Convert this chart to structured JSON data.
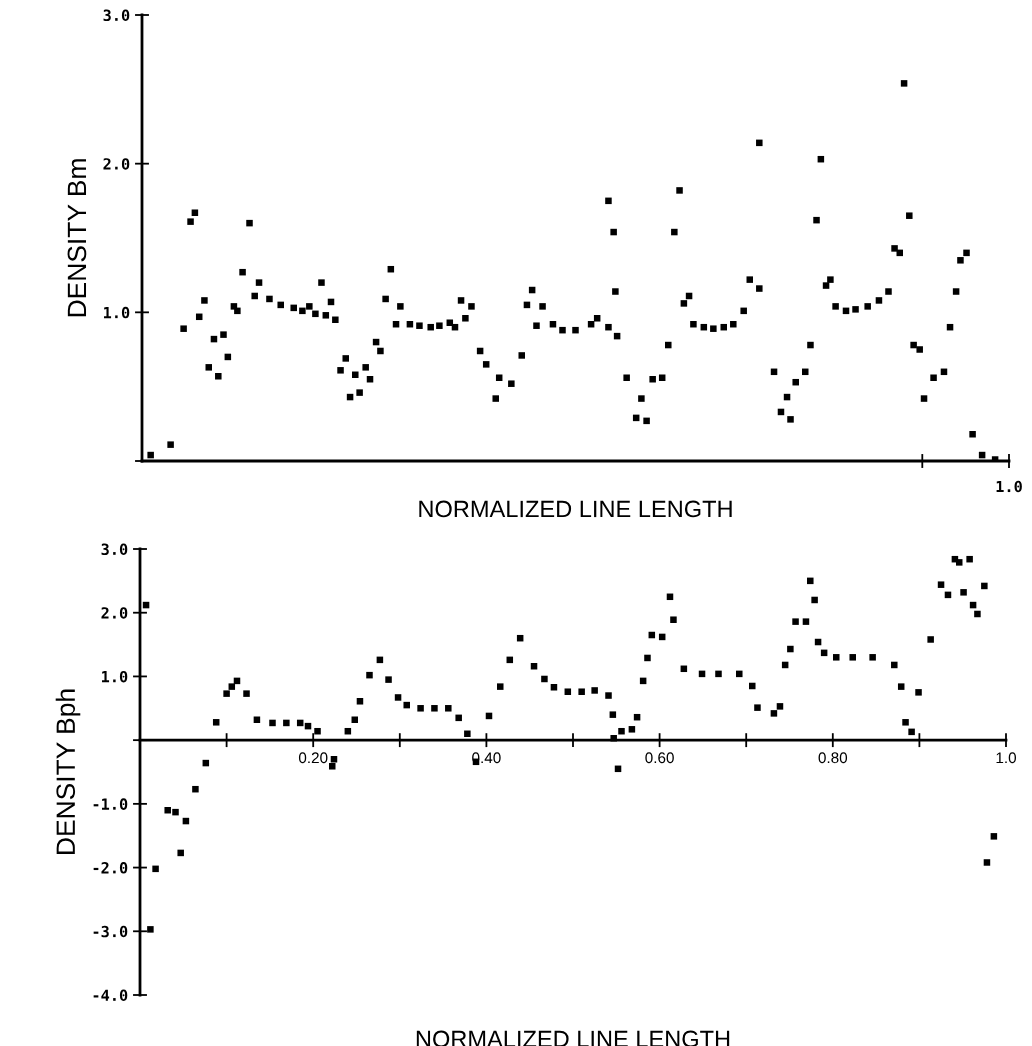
{
  "chart_data": [
    {
      "type": "scatter",
      "ylabel": "DENSITY Bm",
      "xlabel": "NORMALIZED LINE LENGTH",
      "xlim": [
        0,
        1.0
      ],
      "ylim": [
        0,
        3.0
      ],
      "xticks": [
        {
          "value": 0.9,
          "label": null
        },
        {
          "value": 1.0,
          "label": null
        }
      ],
      "tick_labels": "y",
      "annotations": [
        "1.0"
      ],
      "yticks": [
        {
          "value": 0,
          "label": null
        },
        {
          "value": 1.0,
          "label": "1.0"
        },
        {
          "value": 2.0,
          "label": "2.0"
        },
        {
          "value": 3.0,
          "label": "3.0"
        }
      ],
      "grid": false,
      "legend": false,
      "marker": "square",
      "x": [
        0.01,
        0.033,
        0.048,
        0.056,
        0.061,
        0.066,
        0.072,
        0.077,
        0.083,
        0.088,
        0.094,
        0.099,
        0.106,
        0.11,
        0.116,
        0.124,
        0.13,
        0.135,
        0.147,
        0.16,
        0.175,
        0.185,
        0.193,
        0.2,
        0.207,
        0.212,
        0.218,
        0.223,
        0.229,
        0.235,
        0.24,
        0.246,
        0.251,
        0.258,
        0.263,
        0.27,
        0.275,
        0.281,
        0.287,
        0.293,
        0.298,
        0.309,
        0.32,
        0.333,
        0.343,
        0.355,
        0.361,
        0.368,
        0.373,
        0.38,
        0.39,
        0.397,
        0.408,
        0.412,
        0.426,
        0.438,
        0.444,
        0.45,
        0.455,
        0.462,
        0.474,
        0.485,
        0.5,
        0.518,
        0.525,
        0.538,
        0.538,
        0.544,
        0.546,
        0.548,
        0.559,
        0.57,
        0.576,
        0.582,
        0.589,
        0.6,
        0.607,
        0.614,
        0.62,
        0.625,
        0.631,
        0.636,
        0.648,
        0.659,
        0.671,
        0.682,
        0.694,
        0.701,
        0.712,
        0.712,
        0.729,
        0.737,
        0.744,
        0.748,
        0.754,
        0.765,
        0.771,
        0.778,
        0.783,
        0.789,
        0.794,
        0.8,
        0.812,
        0.823,
        0.837,
        0.85,
        0.861,
        0.868,
        0.874,
        0.879,
        0.885,
        0.89,
        0.897,
        0.902,
        0.913,
        0.925,
        0.932,
        0.939,
        0.944,
        0.951,
        0.958,
        0.969,
        0.984
      ],
      "series": [
        {
          "color": "#000000",
          "values": [
            0.04,
            0.11,
            0.89,
            1.61,
            1.67,
            0.97,
            1.08,
            0.63,
            0.82,
            0.57,
            0.85,
            0.7,
            1.04,
            1.01,
            1.27,
            1.6,
            1.11,
            1.2,
            1.09,
            1.05,
            1.03,
            1.01,
            1.04,
            0.99,
            1.2,
            0.98,
            1.07,
            0.95,
            0.61,
            0.69,
            0.43,
            0.58,
            0.46,
            0.63,
            0.55,
            0.8,
            0.74,
            1.09,
            1.29,
            0.92,
            1.04,
            0.92,
            0.91,
            0.9,
            0.91,
            0.93,
            0.9,
            1.08,
            0.96,
            1.04,
            0.74,
            0.65,
            0.42,
            0.56,
            0.52,
            0.71,
            1.05,
            1.15,
            0.91,
            1.04,
            0.92,
            0.88,
            0.88,
            0.92,
            0.96,
            0.9,
            1.75,
            1.54,
            1.14,
            0.84,
            0.56,
            0.29,
            0.42,
            0.27,
            0.55,
            0.56,
            0.78,
            1.54,
            1.82,
            1.06,
            1.11,
            0.92,
            0.9,
            0.89,
            0.9,
            0.92,
            1.01,
            1.22,
            1.16,
            2.14,
            0.6,
            0.33,
            0.43,
            0.28,
            0.53,
            0.6,
            0.78,
            1.62,
            2.03,
            1.18,
            1.22,
            1.04,
            1.01,
            1.02,
            1.04,
            1.08,
            1.14,
            1.43,
            1.4,
            2.54,
            1.65,
            0.78,
            0.75,
            0.42,
            0.56,
            0.6,
            0.9,
            1.14,
            1.35,
            1.4,
            0.18,
            0.04,
            0.01
          ]
        }
      ]
    },
    {
      "type": "scatter",
      "ylabel": "DENSITY Bph",
      "xlabel": "NORMALIZED LINE LENGTH",
      "xlim": [
        0,
        1.0
      ],
      "ylim": [
        -4.0,
        3.0
      ],
      "xticks": [
        {
          "value": 0.1,
          "label": null
        },
        {
          "value": 0.2,
          "label": "0.20"
        },
        {
          "value": 0.3,
          "label": null
        },
        {
          "value": 0.4,
          "label": "0.40"
        },
        {
          "value": 0.5,
          "label": null
        },
        {
          "value": 0.6,
          "label": "0.60"
        },
        {
          "value": 0.7,
          "label": null
        },
        {
          "value": 0.8,
          "label": "0.80"
        },
        {
          "value": 0.9,
          "label": null
        },
        {
          "value": 1.0,
          "label": "1.0"
        }
      ],
      "yticks": [
        {
          "value": -4.0,
          "label": "-4.0"
        },
        {
          "value": -3.0,
          "label": "-3.0"
        },
        {
          "value": -2.0,
          "label": "-2.0"
        },
        {
          "value": -1.0,
          "label": "-1.0"
        },
        {
          "value": 0,
          "label": null
        },
        {
          "value": 1.0,
          "label": "1.0"
        },
        {
          "value": 2.0,
          "label": "2.0"
        },
        {
          "value": 3.0,
          "label": "3.0"
        }
      ],
      "grid": false,
      "legend": false,
      "marker": "square",
      "x": [
        0.007,
        0.012,
        0.018,
        0.032,
        0.041,
        0.047,
        0.053,
        0.064,
        0.076,
        0.088,
        0.1,
        0.106,
        0.112,
        0.123,
        0.135,
        0.153,
        0.169,
        0.185,
        0.194,
        0.205,
        0.222,
        0.224,
        0.24,
        0.248,
        0.254,
        0.265,
        0.277,
        0.287,
        0.298,
        0.308,
        0.324,
        0.34,
        0.356,
        0.368,
        0.378,
        0.388,
        0.403,
        0.416,
        0.427,
        0.439,
        0.455,
        0.467,
        0.478,
        0.494,
        0.51,
        0.525,
        0.541,
        0.546,
        0.547,
        0.552,
        0.556,
        0.568,
        0.574,
        0.581,
        0.586,
        0.591,
        0.603,
        0.612,
        0.616,
        0.628,
        0.649,
        0.668,
        0.692,
        0.707,
        0.713,
        0.732,
        0.739,
        0.745,
        0.751,
        0.757,
        0.769,
        0.774,
        0.779,
        0.783,
        0.79,
        0.804,
        0.823,
        0.846,
        0.871,
        0.879,
        0.884,
        0.891,
        0.899,
        0.913,
        0.925,
        0.933,
        0.941,
        0.946,
        0.951,
        0.958,
        0.962,
        0.967,
        0.975,
        0.978,
        0.986
      ],
      "series": [
        {
          "color": "#000000",
          "values": [
            2.12,
            -2.97,
            -2.02,
            -1.1,
            -1.13,
            -1.77,
            -1.27,
            -0.77,
            -0.36,
            0.28,
            0.73,
            0.84,
            0.93,
            0.73,
            0.32,
            0.27,
            0.27,
            0.27,
            0.22,
            0.14,
            -0.41,
            -0.3,
            0.14,
            0.32,
            0.61,
            1.02,
            1.26,
            0.95,
            0.67,
            0.55,
            0.5,
            0.5,
            0.5,
            0.35,
            0.1,
            -0.34,
            0.38,
            0.84,
            1.26,
            1.6,
            1.16,
            0.96,
            0.83,
            0.76,
            0.76,
            0.78,
            0.7,
            0.4,
            0.03,
            -0.45,
            0.14,
            0.17,
            0.36,
            0.93,
            1.29,
            1.65,
            1.62,
            2.25,
            1.89,
            1.12,
            1.04,
            1.04,
            1.04,
            0.85,
            0.51,
            0.42,
            0.53,
            1.18,
            1.43,
            1.86,
            1.86,
            2.5,
            2.2,
            1.54,
            1.37,
            1.3,
            1.3,
            1.3,
            1.18,
            0.84,
            0.28,
            0.13,
            0.75,
            1.58,
            2.44,
            2.28,
            2.84,
            2.79,
            2.32,
            2.84,
            2.12,
            1.98,
            2.42,
            -1.92,
            -1.51
          ]
        }
      ]
    }
  ]
}
